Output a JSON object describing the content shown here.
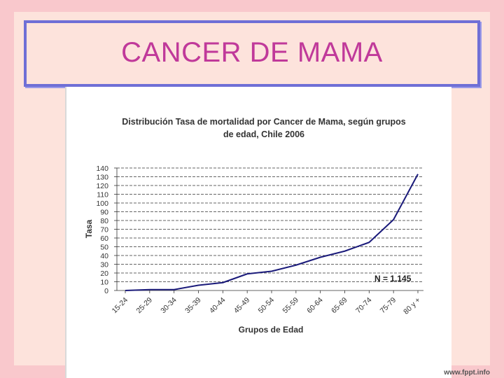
{
  "slide": {
    "title": "CANCER DE MAMA",
    "watermark": "www.fppt.info"
  },
  "colors": {
    "background": "#f9c8cc",
    "panel": "#fde3dc",
    "title_border": "#6f6fd6",
    "title_text": "#c0399a",
    "series_line": "#1a1a7a"
  },
  "chart_data": {
    "type": "line",
    "title_line1": "Distribución Tasa de mortalidad por Cancer de Mama, según grupos",
    "title_line2": "de edad, Chile 2006",
    "xlabel": "Grupos de Edad",
    "ylabel": "Tasa",
    "ylim": [
      0,
      140
    ],
    "yticks": [
      0,
      10,
      20,
      30,
      40,
      50,
      60,
      70,
      80,
      90,
      100,
      110,
      120,
      130,
      140
    ],
    "grid": "horizontal-dashed",
    "categories": [
      "15-24",
      "25-29",
      "30-34",
      "35-39",
      "40-44",
      "45-49",
      "50-54",
      "55-59",
      "60-64",
      "65-69",
      "70-74",
      "75-79",
      "80 y +"
    ],
    "values": [
      0,
      1,
      1,
      6,
      9,
      19,
      22,
      29,
      38,
      45,
      55,
      81,
      133
    ],
    "annotation": "N = 1.145"
  }
}
